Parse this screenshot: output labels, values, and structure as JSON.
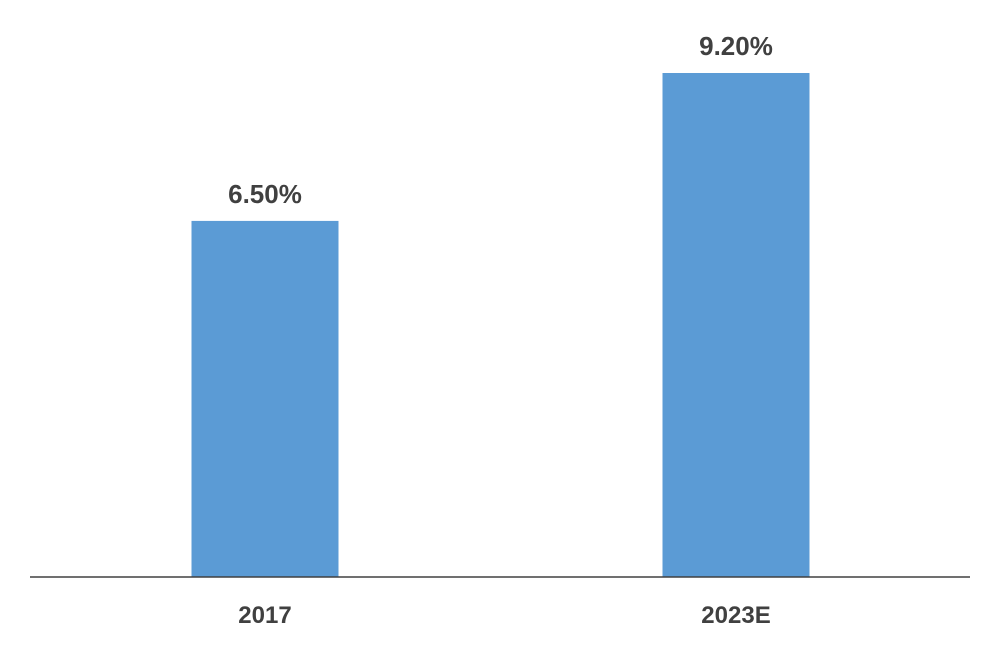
{
  "chart_data": {
    "type": "bar",
    "categories": [
      "2017",
      "2023E"
    ],
    "values": [
      6.5,
      9.2
    ],
    "data_labels": [
      "6.50%",
      "9.20%"
    ],
    "unit": "%",
    "title": "",
    "xlabel": "",
    "ylabel": "",
    "ylim": [
      0,
      9.2
    ],
    "grid": false,
    "legend": "none",
    "bar_color": "#5b9bd5",
    "axis_color": "#404040",
    "label_color": "#404040"
  }
}
